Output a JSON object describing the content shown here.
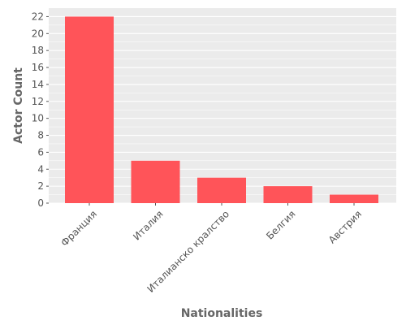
{
  "chart_data": {
    "type": "bar",
    "title": "",
    "xlabel": "Nationalities",
    "ylabel": "Actor Count",
    "categories": [
      "Франция",
      "Италия",
      "Италианско кралство",
      "Белгия",
      "Австрия"
    ],
    "values": [
      22,
      5,
      3,
      2,
      1
    ],
    "ylim": [
      0,
      23
    ],
    "yticks": [
      0,
      2,
      4,
      6,
      8,
      10,
      12,
      14,
      16,
      18,
      20,
      22
    ],
    "grid": true,
    "legend": "none",
    "colors": {
      "bar": "#ff5459",
      "plot_background": "#ebebeb",
      "grid": "#ffffff"
    }
  }
}
